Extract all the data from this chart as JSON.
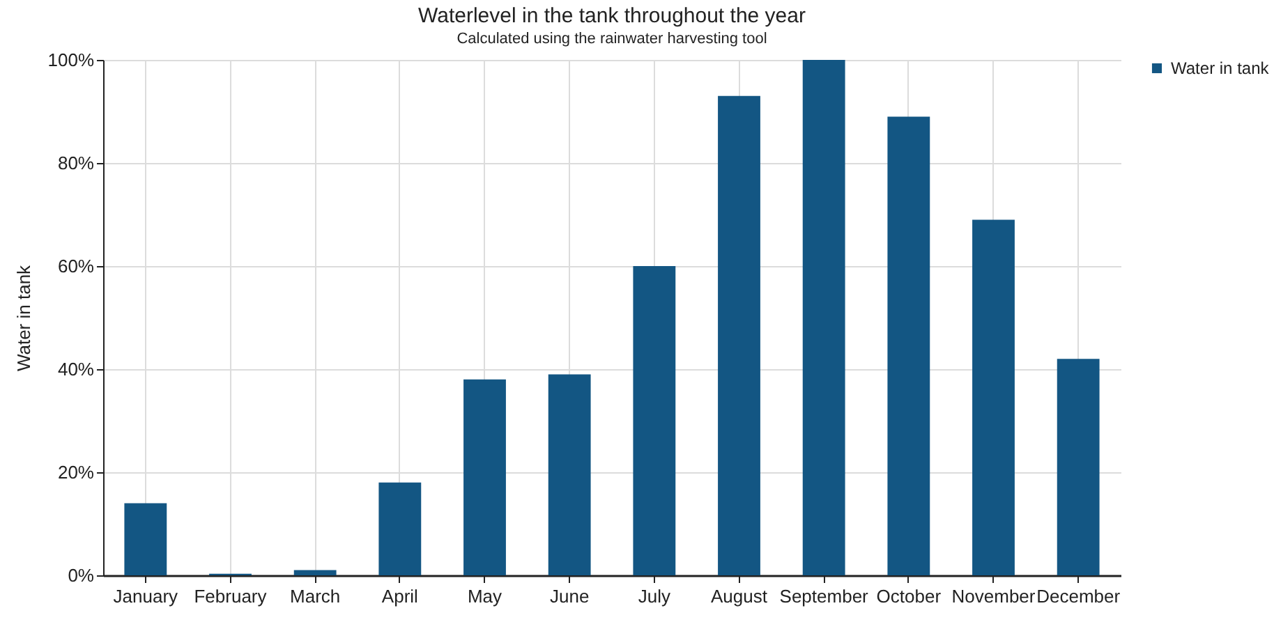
{
  "chart_data": {
    "type": "bar",
    "title": "Waterlevel in the tank throughout the year",
    "subtitle": "Calculated using the rainwater harvesting tool",
    "ylabel": "Water in tank",
    "categories": [
      "January",
      "February",
      "March",
      "April",
      "May",
      "June",
      "July",
      "August",
      "September",
      "October",
      "November",
      "December"
    ],
    "series": [
      {
        "name": "Water in tank",
        "color": "#135683",
        "values": [
          14,
          0.3,
          1,
          18,
          38,
          39,
          60,
          93,
          100,
          89,
          69,
          42
        ]
      }
    ],
    "ylim": [
      0,
      100
    ],
    "yticks": [
      {
        "value": 0,
        "label": "0%"
      },
      {
        "value": 20,
        "label": "20%"
      },
      {
        "value": 40,
        "label": "40%"
      },
      {
        "value": 60,
        "label": "60%"
      },
      {
        "value": 80,
        "label": "80%"
      },
      {
        "value": 100,
        "label": "100%"
      }
    ],
    "grid": true,
    "legend": "right"
  }
}
